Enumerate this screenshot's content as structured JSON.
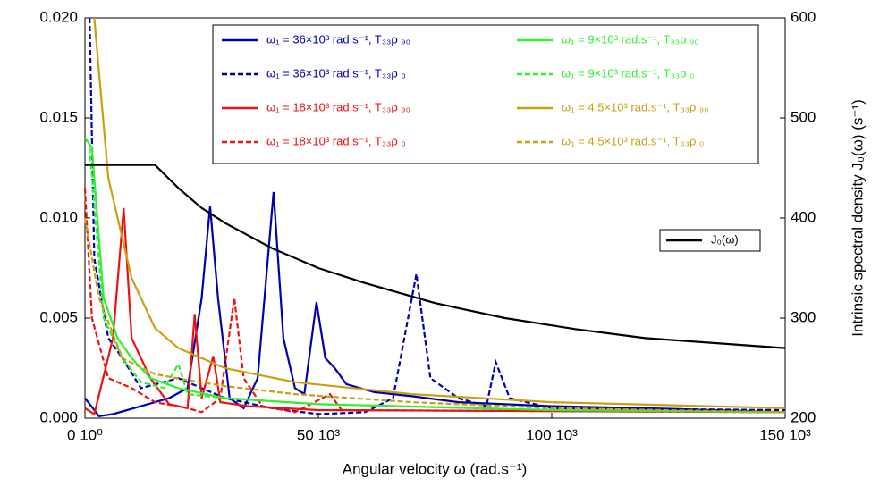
{
  "chart_data": {
    "type": "line",
    "xlabel": "Angular velocity ω  (rad.s⁻¹)",
    "y2label": "Intrinsic spectral density J₀(ω)   (s⁻¹)",
    "xlim": [
      0,
      150000
    ],
    "xticks": [
      {
        "value": 0,
        "label": "0 10⁰"
      },
      {
        "value": 50000,
        "label": "50 10³"
      },
      {
        "value": 100000,
        "label": "100 10³"
      },
      {
        "value": 150000,
        "label": "150 10³"
      }
    ],
    "ylim": [
      0,
      0.02
    ],
    "yticks": [
      {
        "value": 0,
        "label": "0.000"
      },
      {
        "value": 0.005,
        "label": "0.005"
      },
      {
        "value": 0.01,
        "label": "0.010"
      },
      {
        "value": 0.015,
        "label": "0.015"
      },
      {
        "value": 0.02,
        "label": "0.020"
      }
    ],
    "y2lim": [
      200,
      600
    ],
    "y2ticks": [
      200,
      300,
      400,
      500,
      600
    ],
    "series": [
      {
        "name": "ω₁ = 36×10³ rad.s⁻¹, T₃₃ρ ₉₀",
        "color": "#0000b0",
        "dash": false,
        "x": [
          0,
          3000,
          6000,
          12000,
          18000,
          22000,
          25000,
          26800,
          28500,
          31000,
          34000,
          37000,
          40400,
          42500,
          45000,
          47000,
          49600,
          51500,
          53500,
          56000,
          62000,
          70000,
          80000,
          100000,
          120000,
          150000
        ],
        "values": [
          0.001,
          0.0001,
          0.0002,
          0.0006,
          0.001,
          0.0015,
          0.006,
          0.0106,
          0.006,
          0.001,
          0.0005,
          0.002,
          0.0113,
          0.004,
          0.0015,
          0.0012,
          0.0058,
          0.003,
          0.0025,
          0.0017,
          0.0013,
          0.0011,
          0.0008,
          0.0006,
          0.0005,
          0.0003
        ]
      },
      {
        "name": "ω₁ = 36×10³ rad.s⁻¹, T₃₃ρ ₀",
        "color": "#0000b0",
        "dash": true,
        "x": [
          1000,
          2000,
          5000,
          8000,
          12000,
          20000,
          30000,
          40000,
          50000,
          60000,
          66000,
          71000,
          74000,
          80000,
          86000,
          88000,
          91000,
          100000,
          150000
        ],
        "values": [
          0.02,
          0.008,
          0.004,
          0.003,
          0.0015,
          0.002,
          0.001,
          0.0005,
          0.0002,
          0.0003,
          0.001,
          0.0072,
          0.002,
          0.001,
          0.0006,
          0.0028,
          0.001,
          0.0005,
          0.0004
        ]
      },
      {
        "name": "ω₁ = 18×10³ rad.s⁻¹, T₃₃ρ ₉₀",
        "color": "#ee1111",
        "dash": false,
        "x": [
          0,
          2000,
          6000,
          8300,
          10000,
          14000,
          18000,
          22000,
          23500,
          25000,
          27500,
          29000,
          35000,
          50000,
          150000
        ],
        "values": [
          0.0005,
          0.0002,
          0.004,
          0.0105,
          0.004,
          0.002,
          0.0007,
          0.0005,
          0.0052,
          0.001,
          0.0031,
          0.0008,
          0.0006,
          0.0004,
          0.0003
        ]
      },
      {
        "name": "ω₁ = 18×10³ rad.s⁻¹, T₃₃ρ ₀",
        "color": "#ee1111",
        "dash": true,
        "x": [
          0,
          1500,
          5000,
          10000,
          15000,
          22000,
          25000,
          29000,
          32000,
          34000,
          38000,
          45000,
          52500,
          55000,
          150000
        ],
        "values": [
          0.0115,
          0.005,
          0.002,
          0.0015,
          0.0008,
          0.0005,
          0.0003,
          0.001,
          0.006,
          0.002,
          0.0006,
          0.0003,
          0.0012,
          0.0004,
          0.0003
        ]
      },
      {
        "name": "ω₁ = 9×10³ rad.s⁻¹, T₃₃ρ ₉₀",
        "color": "#33ee33",
        "dash": false,
        "x": [
          0,
          1500,
          4000,
          7000,
          10000,
          14000,
          20000,
          30000,
          50000,
          100000,
          150000
        ],
        "values": [
          0.014,
          0.0135,
          0.006,
          0.004,
          0.003,
          0.002,
          0.0015,
          0.001,
          0.0007,
          0.0004,
          0.0003
        ]
      },
      {
        "name": "ω₁ = 9×10³ rad.s⁻¹, T₃₃ρ ₀",
        "color": "#33ee33",
        "dash": true,
        "x": [
          1000,
          4000,
          8000,
          12000,
          17000,
          20000,
          22000,
          30000,
          50000,
          100000,
          150000
        ],
        "values": [
          0.0135,
          0.005,
          0.003,
          0.0018,
          0.0015,
          0.0027,
          0.0012,
          0.001,
          0.0007,
          0.0004,
          0.0003
        ]
      },
      {
        "name": "ω₁ = 4.5×10³ rad.s⁻¹, T₃₃ρ ₉₀",
        "color": "#c8a010",
        "dash": false,
        "x": [
          2000,
          5000,
          10000,
          15000,
          20000,
          30000,
          45000,
          70000,
          100000,
          150000
        ],
        "values": [
          0.02,
          0.012,
          0.007,
          0.0045,
          0.0035,
          0.0025,
          0.0018,
          0.0012,
          0.0008,
          0.0005
        ]
      },
      {
        "name": "ω₁ = 4.5×10³ rad.s⁻¹, T₃₃ρ ₀",
        "color": "#c8a010",
        "dash": true,
        "x": [
          0,
          3000,
          8000,
          15000,
          22000,
          30000,
          45000,
          70000,
          100000,
          150000
        ],
        "values": [
          0.01,
          0.006,
          0.003,
          0.0022,
          0.0019,
          0.0016,
          0.0012,
          0.0008,
          0.0005,
          0.0003
        ]
      },
      {
        "name": "J₀(ω)",
        "color": "#000000",
        "dash": false,
        "axis": "y2",
        "x": [
          0,
          15000,
          20000,
          25000,
          30000,
          40000,
          50000,
          60000,
          75000,
          90000,
          105000,
          120000,
          135000,
          150000
        ],
        "values": [
          453,
          453,
          430,
          410,
          395,
          370,
          350,
          335,
          315,
          300,
          289,
          280,
          275,
          270
        ]
      }
    ]
  }
}
